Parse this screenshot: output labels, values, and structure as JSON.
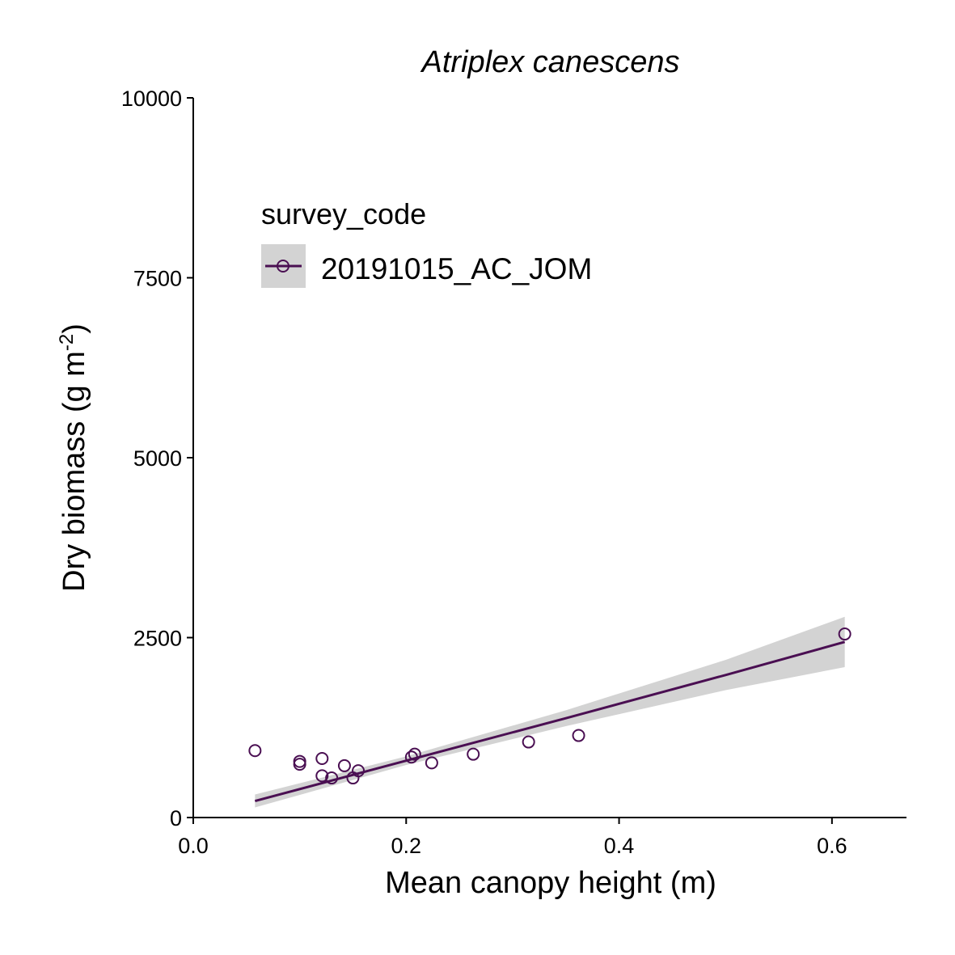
{
  "chart_data": {
    "type": "scatter",
    "title": "Atriplex canescens",
    "xlabel": "Mean canopy height (m)",
    "ylabel": "Dry biomass (g m-2)",
    "ylabel_main": "Dry biomass (g m",
    "ylabel_exp": "-2",
    "ylabel_close": ")",
    "xlim": [
      0,
      0.67
    ],
    "ylim": [
      0,
      10000
    ],
    "x_ticks": [
      0.0,
      0.2,
      0.4,
      0.6
    ],
    "x_tick_labels": [
      "0.0",
      "0.2",
      "0.4",
      "0.6"
    ],
    "y_ticks": [
      0,
      2500,
      5000,
      7500,
      10000
    ],
    "y_tick_labels": [
      "0",
      "2500",
      "5000",
      "7500",
      "10000"
    ],
    "legend": {
      "title": "survey_code",
      "placement": "top-left"
    },
    "series": [
      {
        "name": "20191015_AC_JOM",
        "color": "#4a0f52",
        "points": [
          {
            "x": 0.058,
            "y": 930
          },
          {
            "x": 0.1,
            "y": 780
          },
          {
            "x": 0.1,
            "y": 740
          },
          {
            "x": 0.121,
            "y": 820
          },
          {
            "x": 0.121,
            "y": 580
          },
          {
            "x": 0.13,
            "y": 550
          },
          {
            "x": 0.142,
            "y": 720
          },
          {
            "x": 0.15,
            "y": 550
          },
          {
            "x": 0.155,
            "y": 650
          },
          {
            "x": 0.205,
            "y": 840
          },
          {
            "x": 0.208,
            "y": 880
          },
          {
            "x": 0.224,
            "y": 760
          },
          {
            "x": 0.263,
            "y": 880
          },
          {
            "x": 0.315,
            "y": 1050
          },
          {
            "x": 0.362,
            "y": 1140
          },
          {
            "x": 0.612,
            "y": 2550
          }
        ],
        "fit": {
          "x": [
            0.058,
            0.2,
            0.35,
            0.5,
            0.612
          ],
          "y": [
            230,
            790,
            1380,
            1980,
            2440
          ],
          "lower": [
            140,
            730,
            1270,
            1770,
            2090
          ],
          "upper": [
            320,
            850,
            1490,
            2190,
            2790
          ]
        }
      }
    ]
  },
  "colors": {
    "band": "#d3d3d3",
    "line": "#4a0f52",
    "axis": "#000000"
  }
}
